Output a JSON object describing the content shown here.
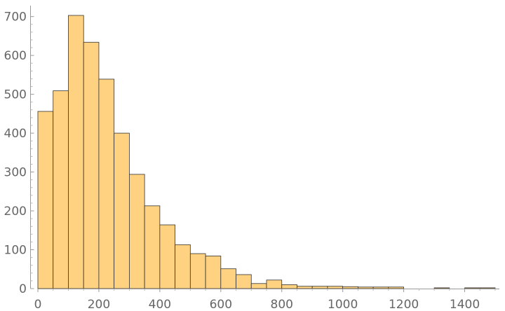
{
  "chart_data": {
    "type": "bar",
    "subtype": "histogram",
    "title": "",
    "xlabel": "",
    "ylabel": "",
    "bin_width": 50,
    "xlim": [
      0,
      1500
    ],
    "ylim": [
      0,
      710
    ],
    "x_ticks": [
      0,
      200,
      400,
      600,
      800,
      1000,
      1200,
      1400
    ],
    "y_ticks": [
      0,
      100,
      200,
      300,
      400,
      500,
      600,
      700
    ],
    "grid": false,
    "legend": "none",
    "bar_color": "#FFD281",
    "edge_color": "#333333",
    "bins": [
      {
        "start": 0,
        "end": 50,
        "count": 456
      },
      {
        "start": 50,
        "end": 100,
        "count": 509
      },
      {
        "start": 100,
        "end": 150,
        "count": 703
      },
      {
        "start": 150,
        "end": 200,
        "count": 634
      },
      {
        "start": 200,
        "end": 250,
        "count": 539
      },
      {
        "start": 250,
        "end": 300,
        "count": 400
      },
      {
        "start": 300,
        "end": 350,
        "count": 294
      },
      {
        "start": 350,
        "end": 400,
        "count": 213
      },
      {
        "start": 400,
        "end": 450,
        "count": 164
      },
      {
        "start": 450,
        "end": 500,
        "count": 113
      },
      {
        "start": 500,
        "end": 550,
        "count": 90
      },
      {
        "start": 550,
        "end": 600,
        "count": 84
      },
      {
        "start": 600,
        "end": 650,
        "count": 51
      },
      {
        "start": 650,
        "end": 700,
        "count": 36
      },
      {
        "start": 700,
        "end": 750,
        "count": 13
      },
      {
        "start": 750,
        "end": 800,
        "count": 22
      },
      {
        "start": 800,
        "end": 850,
        "count": 10
      },
      {
        "start": 850,
        "end": 900,
        "count": 6
      },
      {
        "start": 900,
        "end": 950,
        "count": 6
      },
      {
        "start": 950,
        "end": 1000,
        "count": 6
      },
      {
        "start": 1000,
        "end": 1050,
        "count": 5
      },
      {
        "start": 1050,
        "end": 1100,
        "count": 4
      },
      {
        "start": 1100,
        "end": 1150,
        "count": 4
      },
      {
        "start": 1150,
        "end": 1200,
        "count": 4
      },
      {
        "start": 1200,
        "end": 1250,
        "count": 0
      },
      {
        "start": 1250,
        "end": 1300,
        "count": 0
      },
      {
        "start": 1300,
        "end": 1350,
        "count": 2
      },
      {
        "start": 1350,
        "end": 1400,
        "count": 0
      },
      {
        "start": 1400,
        "end": 1450,
        "count": 2
      },
      {
        "start": 1450,
        "end": 1500,
        "count": 2
      }
    ]
  }
}
